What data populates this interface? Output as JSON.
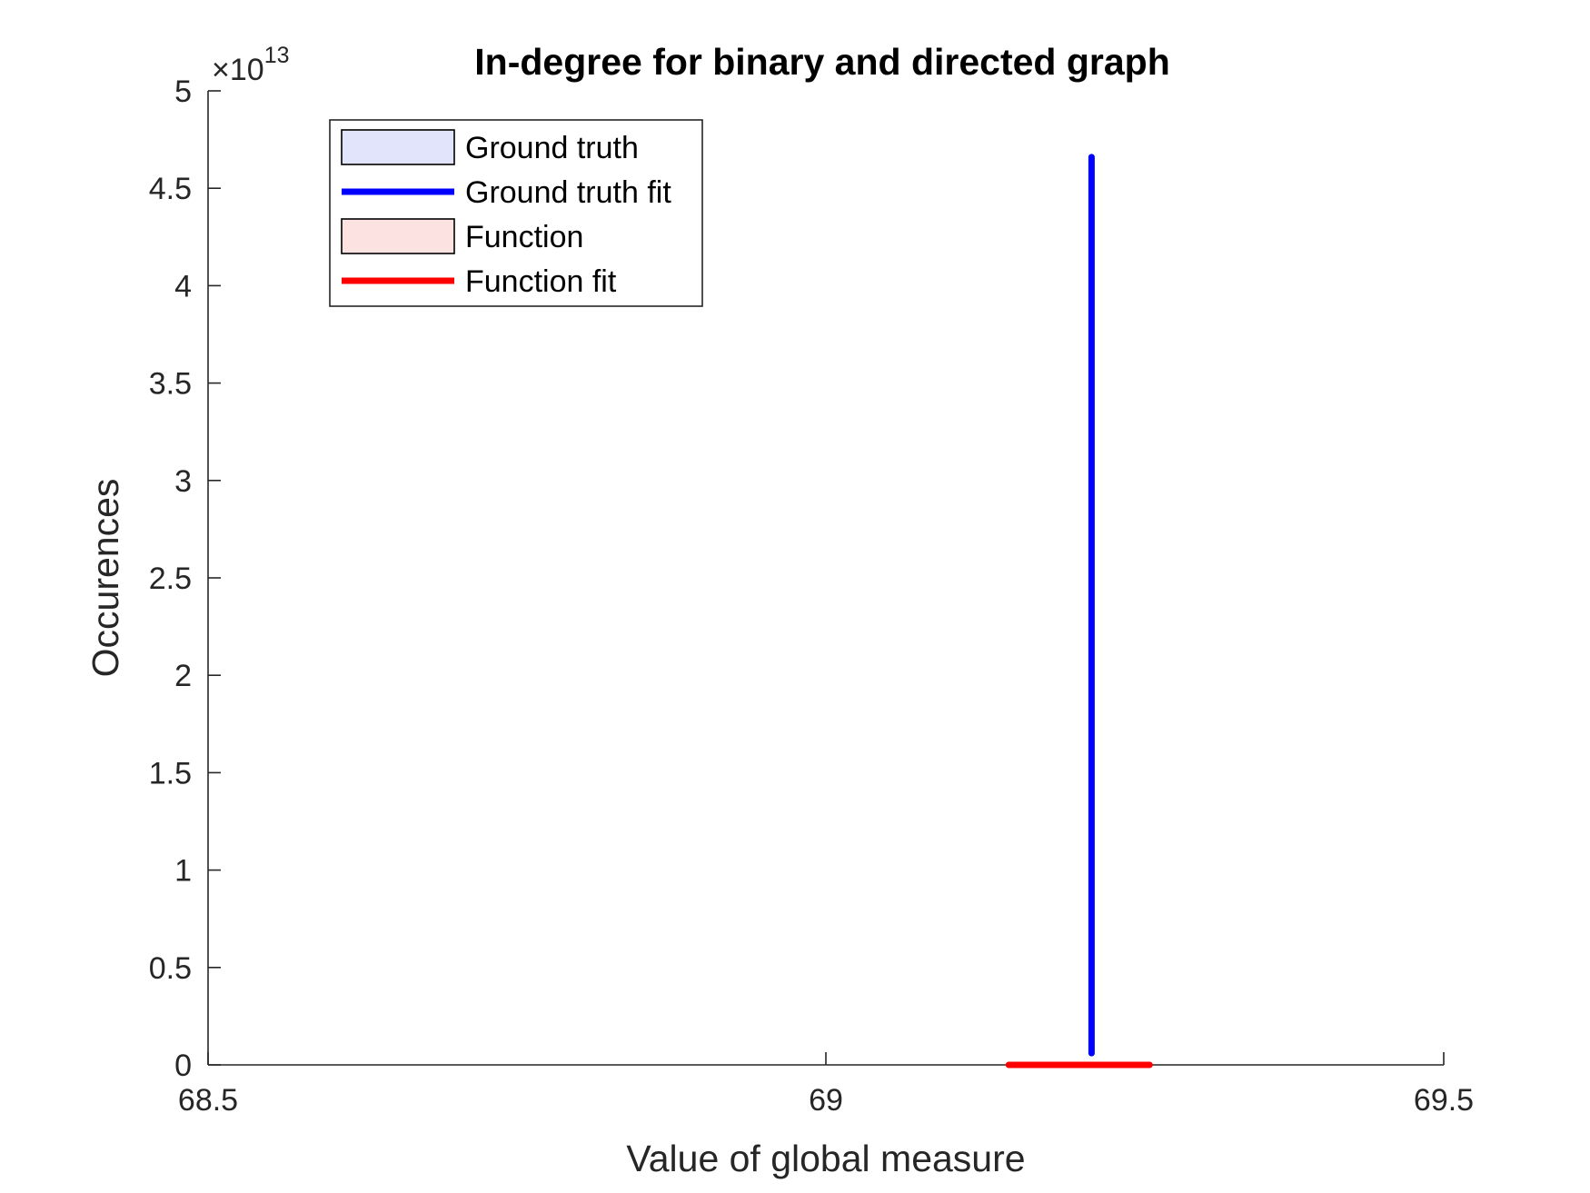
{
  "chart_data": {
    "type": "line",
    "title": "In-degree for binary and directed graph",
    "xlabel": "Value of global measure",
    "ylabel": "Occurences",
    "xlim": [
      68.5,
      69.5
    ],
    "ylim": [
      0,
      5
    ],
    "y_exponent_label": {
      "prefix": "×10",
      "exponent": "13"
    },
    "x_ticks": [
      68.5,
      69,
      69.5
    ],
    "x_tick_labels": [
      "68.5",
      "69",
      "69.5"
    ],
    "y_ticks": [
      0,
      0.5,
      1,
      1.5,
      2,
      2.5,
      3,
      3.5,
      4,
      4.5,
      5
    ],
    "y_tick_labels": [
      "0",
      "0.5",
      "1",
      "1.5",
      "2",
      "2.5",
      "3",
      "3.5",
      "4",
      "4.5",
      "5"
    ],
    "grid": false,
    "legend_position": "top-left",
    "legend": [
      {
        "label": "Ground truth",
        "kind": "patch",
        "fill": "#e2e4fb",
        "stroke": "#000000"
      },
      {
        "label": "Ground truth fit",
        "kind": "line",
        "color": "#0000ff"
      },
      {
        "label": "Function",
        "kind": "patch",
        "fill": "#fde2e2",
        "stroke": "#000000"
      },
      {
        "label": "Function fit",
        "kind": "line",
        "color": "#ff0000"
      }
    ],
    "series": [
      {
        "name": "Ground truth fit",
        "color": "#0000ff",
        "points": [
          [
            69.215,
            0.06
          ],
          [
            69.215,
            4.66
          ]
        ]
      },
      {
        "name": "Function fit",
        "color": "#ff0000",
        "points": [
          [
            69.148,
            0
          ],
          [
            69.262,
            0
          ]
        ]
      }
    ]
  }
}
